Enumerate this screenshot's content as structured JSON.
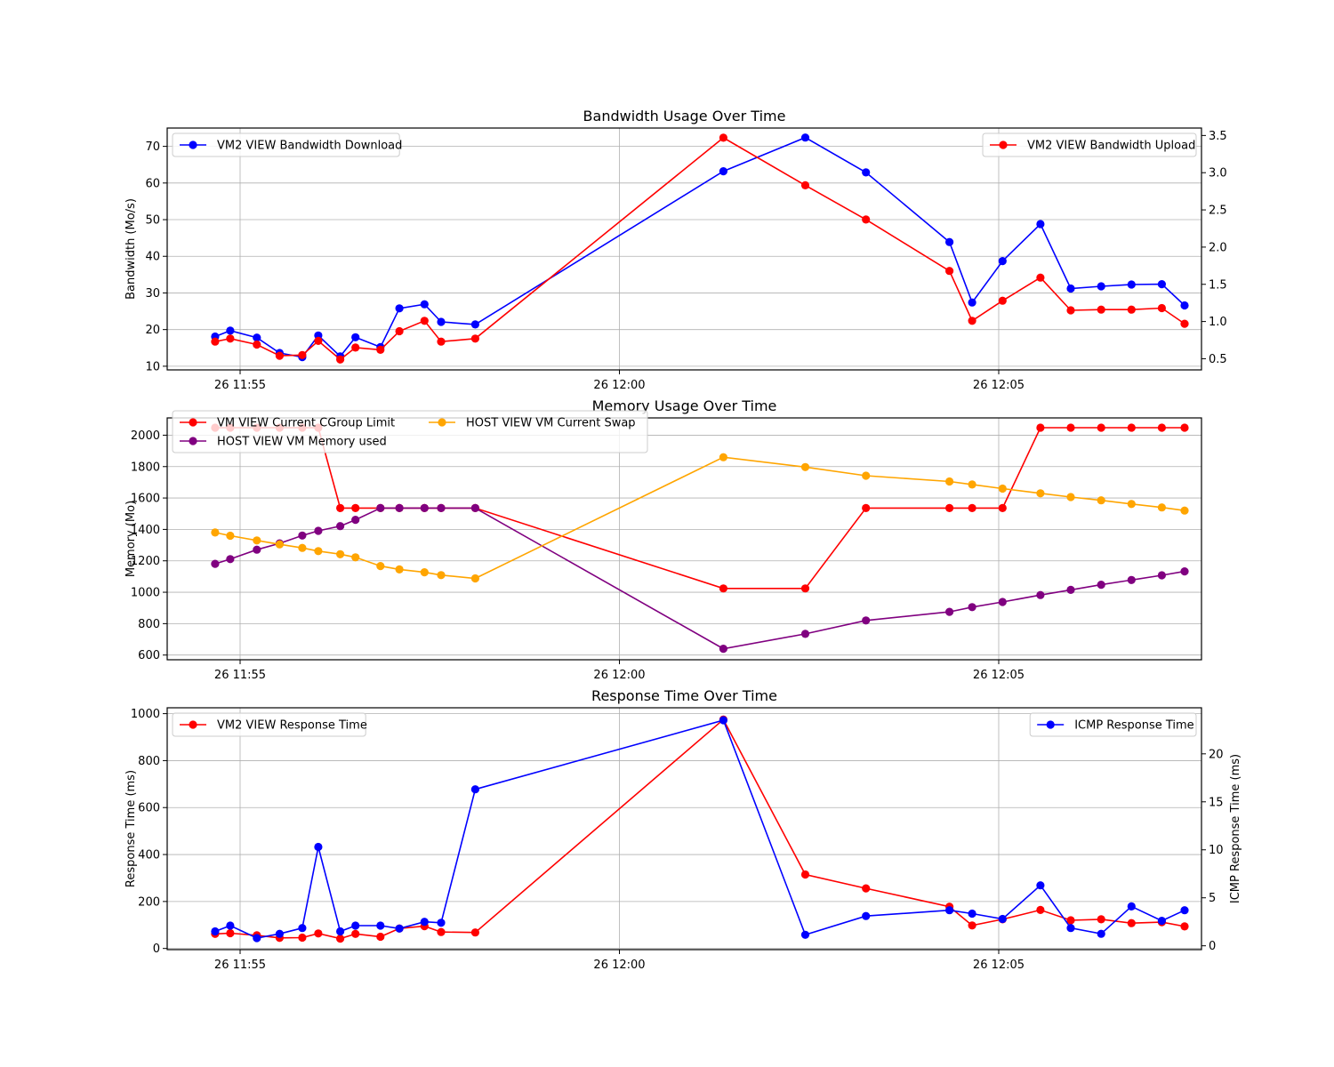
{
  "x_ticks": [
    "26 11:55",
    "26 12:00",
    "26 12:05"
  ],
  "chart_data": [
    {
      "type": "line",
      "title": "Bandwidth Usage Over Time",
      "xlabel": "",
      "ylabel": "Bandwidth (Mo/s)",
      "y2label": "",
      "x_unit": "minutes after 11:55",
      "ylim": [
        9,
        75
      ],
      "y2lim": [
        0.35,
        3.6
      ],
      "yticks": [
        10,
        20,
        30,
        40,
        50,
        60,
        70
      ],
      "y2ticks": [
        0.5,
        1.0,
        1.5,
        2.0,
        2.5,
        3.0,
        3.5
      ],
      "ytick_labels": [
        "10",
        "20",
        "30",
        "40",
        "50",
        "60",
        "70"
      ],
      "y2tick_labels": [
        "0.5",
        "1.0",
        "1.5",
        "2.0",
        "2.5",
        "3.0",
        "3.5"
      ],
      "grid": true,
      "series": [
        {
          "name": "VM2 VIEW Bandwidth Download",
          "axis": "left",
          "color": "#0000ff",
          "legend": "upper-left",
          "points": [
            [
              -0.33,
              18.1
            ],
            [
              -0.13,
              19.7
            ],
            [
              0.22,
              17.8
            ],
            [
              0.52,
              13.6
            ],
            [
              0.82,
              12.5
            ],
            [
              1.03,
              18.4
            ],
            [
              1.32,
              12.7
            ],
            [
              1.52,
              17.9
            ],
            [
              1.85,
              15.2
            ],
            [
              2.1,
              25.8
            ],
            [
              2.43,
              26.9
            ],
            [
              2.65,
              22.1
            ],
            [
              3.1,
              21.4
            ],
            [
              6.37,
              63.2
            ],
            [
              7.45,
              72.4
            ],
            [
              8.25,
              62.9
            ],
            [
              9.35,
              43.9
            ],
            [
              9.65,
              27.4
            ],
            [
              10.05,
              38.7
            ],
            [
              10.55,
              48.8
            ],
            [
              10.95,
              31.2
            ],
            [
              11.35,
              31.8
            ],
            [
              11.75,
              32.3
            ],
            [
              12.15,
              32.4
            ],
            [
              12.45,
              26.6
            ]
          ]
        },
        {
          "name": "VM2 VIEW Bandwidth Upload",
          "axis": "right",
          "color": "#ff0000",
          "legend": "upper-right",
          "points": [
            [
              -0.33,
              0.73
            ],
            [
              -0.13,
              0.77
            ],
            [
              0.22,
              0.69
            ],
            [
              0.52,
              0.54
            ],
            [
              0.82,
              0.55
            ],
            [
              1.03,
              0.74
            ],
            [
              1.32,
              0.49
            ],
            [
              1.52,
              0.65
            ],
            [
              1.85,
              0.62
            ],
            [
              2.1,
              0.87
            ],
            [
              2.43,
              1.01
            ],
            [
              2.65,
              0.73
            ],
            [
              3.1,
              0.77
            ],
            [
              6.37,
              3.47
            ],
            [
              7.45,
              2.83
            ],
            [
              8.25,
              2.37
            ],
            [
              9.35,
              1.68
            ],
            [
              9.65,
              1.01
            ],
            [
              10.05,
              1.28
            ],
            [
              10.55,
              1.59
            ],
            [
              10.95,
              1.15
            ],
            [
              11.35,
              1.16
            ],
            [
              11.75,
              1.16
            ],
            [
              12.15,
              1.18
            ],
            [
              12.45,
              0.97
            ]
          ]
        }
      ]
    },
    {
      "type": "line",
      "title": "Memory Usage Over Time",
      "xlabel": "",
      "ylabel": "Memory (Mo)",
      "x_unit": "minutes after 11:55",
      "ylim": [
        570,
        2110
      ],
      "yticks": [
        600,
        800,
        1000,
        1200,
        1400,
        1600,
        1800,
        2000
      ],
      "ytick_labels": [
        "600",
        "800",
        "1000",
        "1200",
        "1400",
        "1600",
        "1800",
        "2000"
      ],
      "grid": true,
      "legend_position": "upper-left",
      "series": [
        {
          "name": "VM VIEW Current CGroup Limit",
          "color": "#ff0000",
          "points": [
            [
              -0.33,
              2048
            ],
            [
              -0.13,
              2048
            ],
            [
              0.22,
              2048
            ],
            [
              0.52,
              2048
            ],
            [
              0.82,
              2048
            ],
            [
              1.03,
              2048
            ],
            [
              1.32,
              1536
            ],
            [
              1.52,
              1536
            ],
            [
              1.85,
              1536
            ],
            [
              2.1,
              1536
            ],
            [
              2.43,
              1536
            ],
            [
              2.65,
              1536
            ],
            [
              3.1,
              1536
            ],
            [
              6.37,
              1024
            ],
            [
              7.45,
              1024
            ],
            [
              8.25,
              1536
            ],
            [
              9.35,
              1536
            ],
            [
              9.65,
              1536
            ],
            [
              10.05,
              1536
            ],
            [
              10.55,
              2048
            ],
            [
              10.95,
              2048
            ],
            [
              11.35,
              2048
            ],
            [
              11.75,
              2048
            ],
            [
              12.15,
              2048
            ],
            [
              12.45,
              2048
            ]
          ]
        },
        {
          "name": "HOST VIEW VM Memory used",
          "color": "#800080",
          "points": [
            [
              -0.33,
              1181
            ],
            [
              -0.13,
              1211
            ],
            [
              0.22,
              1271
            ],
            [
              0.52,
              1311
            ],
            [
              0.82,
              1361
            ],
            [
              1.03,
              1391
            ],
            [
              1.32,
              1421
            ],
            [
              1.52,
              1461
            ],
            [
              1.85,
              1536
            ],
            [
              2.1,
              1536
            ],
            [
              2.43,
              1536
            ],
            [
              2.65,
              1536
            ],
            [
              3.1,
              1536
            ],
            [
              6.37,
              640
            ],
            [
              7.45,
              735
            ],
            [
              8.25,
              820
            ],
            [
              9.35,
              875
            ],
            [
              9.65,
              905
            ],
            [
              10.05,
              938
            ],
            [
              10.55,
              982
            ],
            [
              10.95,
              1015
            ],
            [
              11.35,
              1048
            ],
            [
              11.75,
              1078
            ],
            [
              12.15,
              1108
            ],
            [
              12.45,
              1133
            ]
          ]
        },
        {
          "name": "HOST VIEW VM Current Swap",
          "color": "#ffa500",
          "points": [
            [
              -0.33,
              1380
            ],
            [
              -0.13,
              1360
            ],
            [
              0.22,
              1330
            ],
            [
              0.52,
              1305
            ],
            [
              0.82,
              1282
            ],
            [
              1.03,
              1262
            ],
            [
              1.32,
              1242
            ],
            [
              1.52,
              1222
            ],
            [
              1.85,
              1167
            ],
            [
              2.1,
              1145
            ],
            [
              2.43,
              1127
            ],
            [
              2.65,
              1109
            ],
            [
              3.1,
              1088
            ],
            [
              6.37,
              1860
            ],
            [
              7.45,
              1797
            ],
            [
              8.25,
              1742
            ],
            [
              9.35,
              1705
            ],
            [
              9.65,
              1686
            ],
            [
              10.05,
              1660
            ],
            [
              10.55,
              1630
            ],
            [
              10.95,
              1606
            ],
            [
              11.35,
              1585
            ],
            [
              11.75,
              1562
            ],
            [
              12.15,
              1540
            ],
            [
              12.45,
              1520
            ]
          ]
        }
      ]
    },
    {
      "type": "line",
      "title": "Response Time Over Time",
      "xlabel": "",
      "ylabel": "Response Time (ms)",
      "y2label": "ICMP Response Time (ms)",
      "x_unit": "minutes after 11:55",
      "ylim": [
        -5,
        1025
      ],
      "y2lim": [
        -0.4,
        24.8
      ],
      "yticks": [
        0,
        200,
        400,
        600,
        800,
        1000
      ],
      "y2ticks": [
        0,
        5,
        10,
        15,
        20
      ],
      "ytick_labels": [
        "0",
        "200",
        "400",
        "600",
        "800",
        "1000"
      ],
      "y2tick_labels": [
        "0",
        "5",
        "10",
        "15",
        "20"
      ],
      "grid": true,
      "series": [
        {
          "name": "VM2 VIEW Response Time",
          "axis": "left",
          "color": "#ff0000",
          "legend": "upper-left",
          "points": [
            [
              -0.33,
              62
            ],
            [
              -0.13,
              65
            ],
            [
              0.22,
              56
            ],
            [
              0.52,
              45
            ],
            [
              0.82,
              46
            ],
            [
              1.03,
              64
            ],
            [
              1.32,
              42
            ],
            [
              1.52,
              62
            ],
            [
              1.85,
              50
            ],
            [
              2.1,
              85
            ],
            [
              2.43,
              95
            ],
            [
              2.65,
              70
            ],
            [
              3.1,
              68
            ],
            [
              6.37,
              975
            ],
            [
              7.45,
              315
            ],
            [
              8.25,
              256
            ],
            [
              9.35,
              178
            ],
            [
              9.65,
              98
            ],
            [
              10.05,
              124
            ],
            [
              10.55,
              164
            ],
            [
              10.95,
              120
            ],
            [
              11.35,
              124
            ],
            [
              11.75,
              108
            ],
            [
              12.15,
              112
            ],
            [
              12.45,
              94
            ]
          ]
        },
        {
          "name": "ICMP Response Time",
          "axis": "right",
          "color": "#0000ff",
          "legend": "upper-right",
          "points": [
            [
              -0.33,
              1.5
            ],
            [
              -0.13,
              2.1
            ],
            [
              0.22,
              0.8
            ],
            [
              0.52,
              1.25
            ],
            [
              0.82,
              1.85
            ],
            [
              1.03,
              10.3
            ],
            [
              1.32,
              1.5
            ],
            [
              1.52,
              2.1
            ],
            [
              1.85,
              2.1
            ],
            [
              2.1,
              1.8
            ],
            [
              2.43,
              2.5
            ],
            [
              2.65,
              2.4
            ],
            [
              3.1,
              16.3
            ],
            [
              6.37,
              23.5
            ],
            [
              7.45,
              1.15
            ],
            [
              8.25,
              3.1
            ],
            [
              9.35,
              3.7
            ],
            [
              9.65,
              3.35
            ],
            [
              10.05,
              2.8
            ],
            [
              10.55,
              6.3
            ],
            [
              10.95,
              1.85
            ],
            [
              11.35,
              1.25
            ],
            [
              11.75,
              4.1
            ],
            [
              12.15,
              2.6
            ],
            [
              12.45,
              3.7
            ]
          ]
        }
      ]
    }
  ]
}
